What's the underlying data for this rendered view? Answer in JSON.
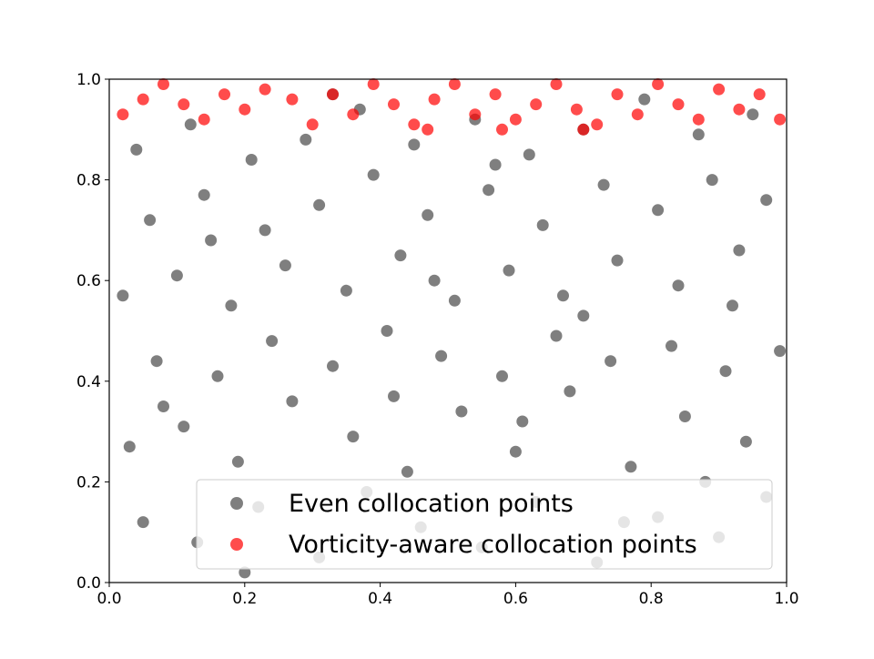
{
  "chart_data": {
    "type": "scatter",
    "title": "",
    "xlabel": "",
    "ylabel": "",
    "xlim": [
      0.0,
      1.0
    ],
    "ylim": [
      0.0,
      1.0
    ],
    "x_ticks": [
      "0.0",
      "0.2",
      "0.4",
      "0.6",
      "0.8",
      "1.0"
    ],
    "y_ticks": [
      "0.0",
      "0.2",
      "0.4",
      "0.6",
      "0.8",
      "1.0"
    ],
    "grid": false,
    "legend_position": "bottom-right",
    "series": [
      {
        "name": "Even collocation points",
        "color": "#000000",
        "opacity": 0.5,
        "points": [
          [
            0.05,
            0.12
          ],
          [
            0.13,
            0.08
          ],
          [
            0.22,
            0.15
          ],
          [
            0.31,
            0.05
          ],
          [
            0.38,
            0.18
          ],
          [
            0.46,
            0.11
          ],
          [
            0.55,
            0.07
          ],
          [
            0.63,
            0.16
          ],
          [
            0.72,
            0.04
          ],
          [
            0.81,
            0.13
          ],
          [
            0.9,
            0.09
          ],
          [
            0.97,
            0.17
          ],
          [
            0.03,
            0.27
          ],
          [
            0.11,
            0.31
          ],
          [
            0.19,
            0.24
          ],
          [
            0.27,
            0.36
          ],
          [
            0.36,
            0.29
          ],
          [
            0.44,
            0.22
          ],
          [
            0.52,
            0.34
          ],
          [
            0.6,
            0.26
          ],
          [
            0.68,
            0.38
          ],
          [
            0.77,
            0.23
          ],
          [
            0.85,
            0.33
          ],
          [
            0.94,
            0.28
          ],
          [
            0.07,
            0.44
          ],
          [
            0.16,
            0.41
          ],
          [
            0.24,
            0.48
          ],
          [
            0.33,
            0.43
          ],
          [
            0.41,
            0.5
          ],
          [
            0.49,
            0.45
          ],
          [
            0.58,
            0.41
          ],
          [
            0.66,
            0.49
          ],
          [
            0.74,
            0.44
          ],
          [
            0.83,
            0.47
          ],
          [
            0.91,
            0.42
          ],
          [
            0.99,
            0.46
          ],
          [
            0.02,
            0.57
          ],
          [
            0.1,
            0.61
          ],
          [
            0.18,
            0.55
          ],
          [
            0.26,
            0.63
          ],
          [
            0.35,
            0.58
          ],
          [
            0.43,
            0.65
          ],
          [
            0.51,
            0.56
          ],
          [
            0.59,
            0.62
          ],
          [
            0.67,
            0.57
          ],
          [
            0.75,
            0.64
          ],
          [
            0.84,
            0.59
          ],
          [
            0.93,
            0.66
          ],
          [
            0.06,
            0.72
          ],
          [
            0.14,
            0.77
          ],
          [
            0.23,
            0.7
          ],
          [
            0.31,
            0.75
          ],
          [
            0.39,
            0.81
          ],
          [
            0.47,
            0.73
          ],
          [
            0.56,
            0.78
          ],
          [
            0.64,
            0.71
          ],
          [
            0.73,
            0.79
          ],
          [
            0.81,
            0.74
          ],
          [
            0.89,
            0.8
          ],
          [
            0.97,
            0.76
          ],
          [
            0.04,
            0.86
          ],
          [
            0.12,
            0.91
          ],
          [
            0.21,
            0.84
          ],
          [
            0.29,
            0.88
          ],
          [
            0.37,
            0.94
          ],
          [
            0.45,
            0.87
          ],
          [
            0.54,
            0.92
          ],
          [
            0.62,
            0.85
          ],
          [
            0.7,
            0.9
          ],
          [
            0.79,
            0.96
          ],
          [
            0.87,
            0.89
          ],
          [
            0.95,
            0.93
          ],
          [
            0.08,
            0.35
          ],
          [
            0.2,
            0.02
          ],
          [
            0.33,
            0.97
          ],
          [
            0.48,
            0.6
          ],
          [
            0.61,
            0.32
          ],
          [
            0.7,
            0.53
          ],
          [
            0.88,
            0.2
          ],
          [
            0.15,
            0.68
          ],
          [
            0.42,
            0.37
          ],
          [
            0.57,
            0.83
          ],
          [
            0.76,
            0.12
          ],
          [
            0.92,
            0.55
          ]
        ]
      },
      {
        "name": "Vorticity-aware collocation points",
        "color": "#ff0000",
        "opacity": 0.7,
        "points": [
          [
            0.02,
            0.93
          ],
          [
            0.05,
            0.96
          ],
          [
            0.08,
            0.99
          ],
          [
            0.11,
            0.95
          ],
          [
            0.14,
            0.92
          ],
          [
            0.17,
            0.97
          ],
          [
            0.2,
            0.94
          ],
          [
            0.23,
            0.98
          ],
          [
            0.27,
            0.96
          ],
          [
            0.3,
            0.91
          ],
          [
            0.33,
            0.97
          ],
          [
            0.36,
            0.93
          ],
          [
            0.39,
            0.99
          ],
          [
            0.42,
            0.95
          ],
          [
            0.45,
            0.91
          ],
          [
            0.48,
            0.96
          ],
          [
            0.51,
            0.99
          ],
          [
            0.54,
            0.93
          ],
          [
            0.57,
            0.97
          ],
          [
            0.6,
            0.92
          ],
          [
            0.63,
            0.95
          ],
          [
            0.66,
            0.99
          ],
          [
            0.69,
            0.94
          ],
          [
            0.72,
            0.91
          ],
          [
            0.75,
            0.97
          ],
          [
            0.78,
            0.93
          ],
          [
            0.81,
            0.99
          ],
          [
            0.84,
            0.95
          ],
          [
            0.87,
            0.92
          ],
          [
            0.9,
            0.98
          ],
          [
            0.93,
            0.94
          ],
          [
            0.96,
            0.97
          ],
          [
            0.99,
            0.92
          ],
          [
            0.58,
            0.9
          ],
          [
            0.7,
            0.9
          ],
          [
            0.47,
            0.9
          ]
        ]
      }
    ],
    "legend": [
      {
        "label": "Even collocation points"
      },
      {
        "label": "Vorticity-aware collocation points"
      }
    ]
  }
}
